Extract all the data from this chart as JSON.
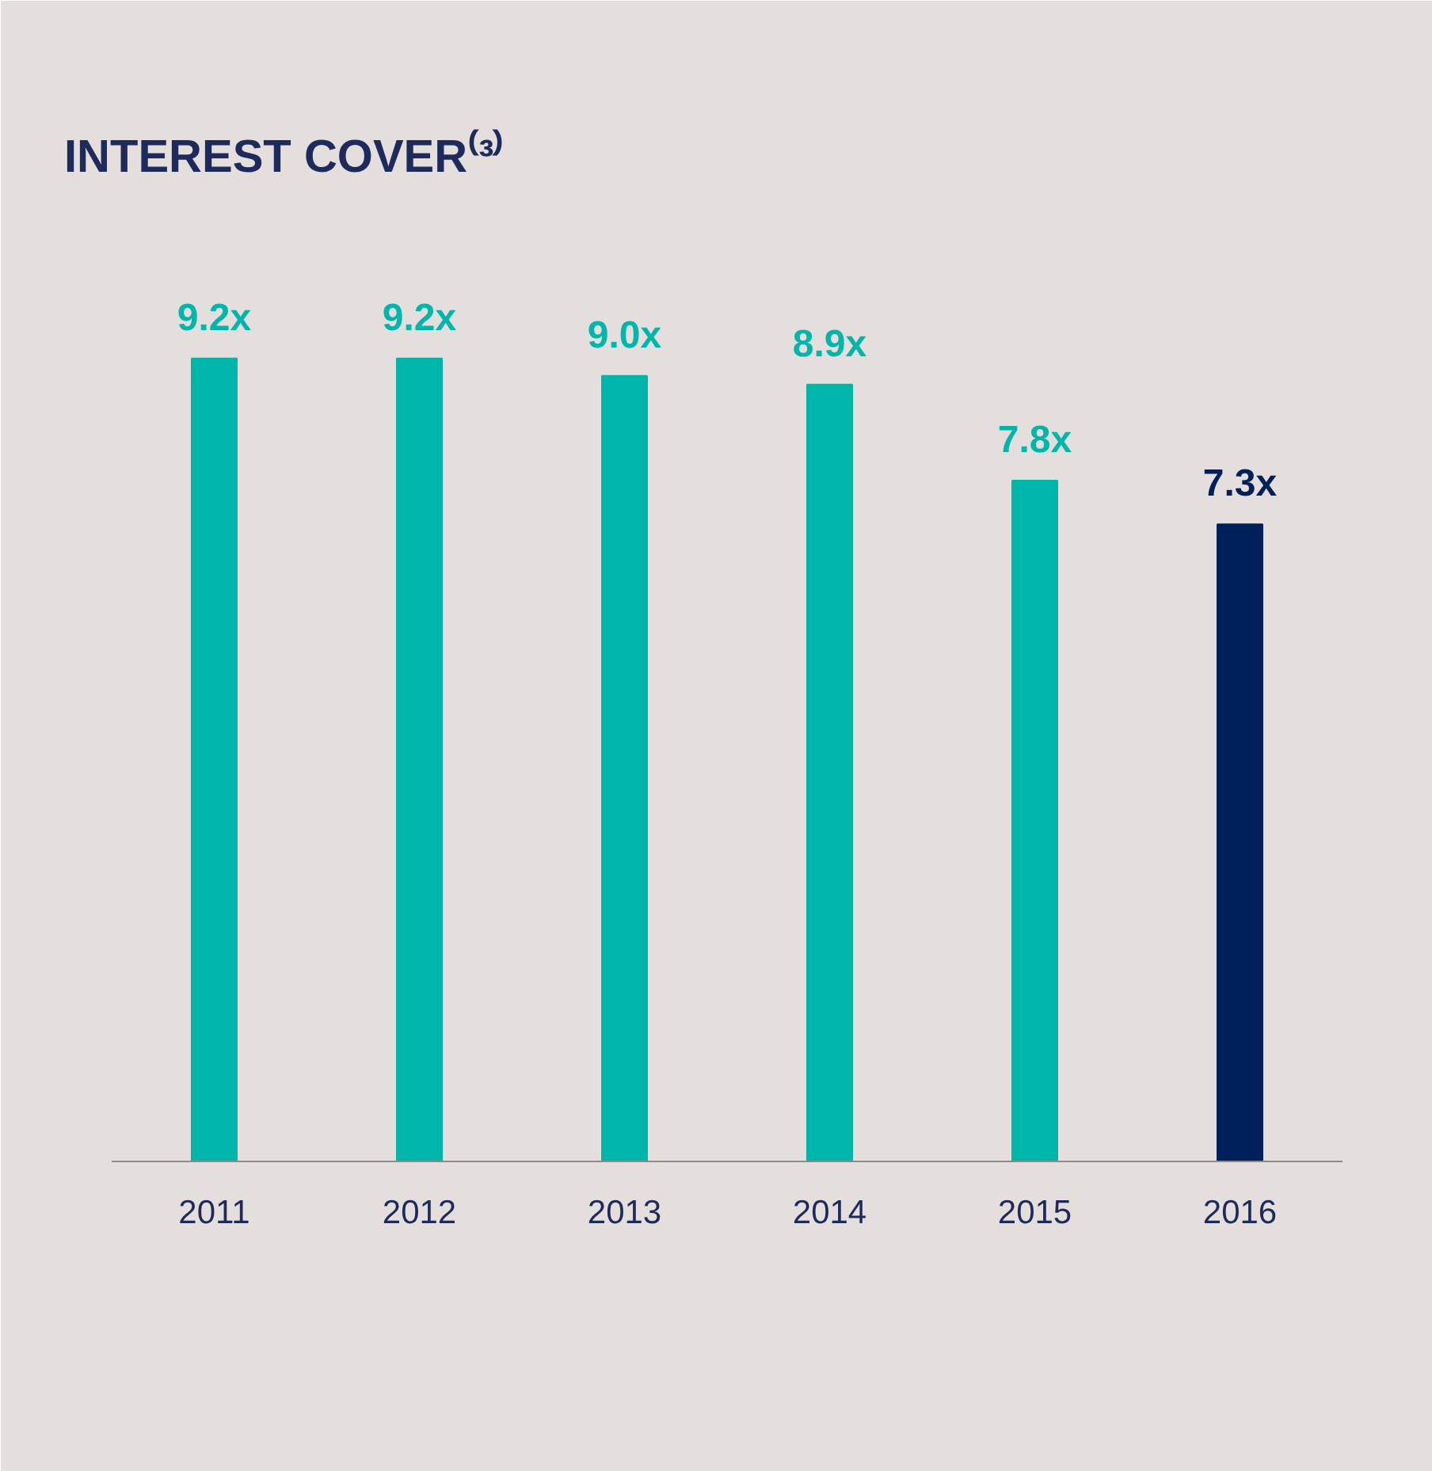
{
  "chart_data": {
    "type": "bar",
    "title": "INTEREST COVER⁽³⁾",
    "categories": [
      "2011",
      "2012",
      "2013",
      "2014",
      "2015",
      "2016"
    ],
    "values": [
      9.2,
      9.2,
      9.0,
      8.9,
      7.8,
      7.3
    ],
    "colors": [
      "#00b5a9",
      "#00b5a9",
      "#00b5a9",
      "#00b5a9",
      "#00b5a9",
      "#00205b"
    ],
    "value_labels": [
      "9.2x",
      "9.2x",
      "9.0x",
      "8.9x",
      "7.8x",
      "7.3x"
    ],
    "grid": false
  }
}
